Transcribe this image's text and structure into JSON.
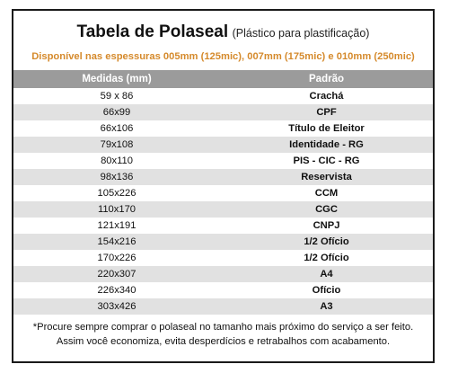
{
  "header": {
    "title": "Tabela de Polaseal",
    "subtitle": "(Plástico para plastificação)",
    "availability": "Disponível nas espessuras 005mm (125mic), 007mm (175mic) e 010mm (250mic)"
  },
  "table": {
    "columns": [
      "Medidas (mm)",
      "Padrão"
    ],
    "rows": [
      [
        "59 x 86",
        "Crachá"
      ],
      [
        "66x99",
        "CPF"
      ],
      [
        "66x106",
        "Título de Eleitor"
      ],
      [
        "79x108",
        "Identidade - RG"
      ],
      [
        "80x110",
        "PIS - CIC - RG"
      ],
      [
        "98x136",
        "Reservista"
      ],
      [
        "105x226",
        "CCM"
      ],
      [
        "110x170",
        "CGC"
      ],
      [
        "121x191",
        "CNPJ"
      ],
      [
        "154x216",
        "1/2 Ofício"
      ],
      [
        "170x226",
        "1/2 Ofício"
      ],
      [
        "220x307",
        "A4"
      ],
      [
        "226x340",
        "Ofício"
      ],
      [
        "303x426",
        "A3"
      ]
    ]
  },
  "footnote": "*Procure sempre comprar o polaseal no tamanho mais próximo do serviço a ser feito. Assim você economiza, evita desperdícios e retrabalhos com acabamento.",
  "colors": {
    "accent": "#d58a2c",
    "header_bg": "#9b9b9b",
    "stripe": "#e1e1e1"
  }
}
